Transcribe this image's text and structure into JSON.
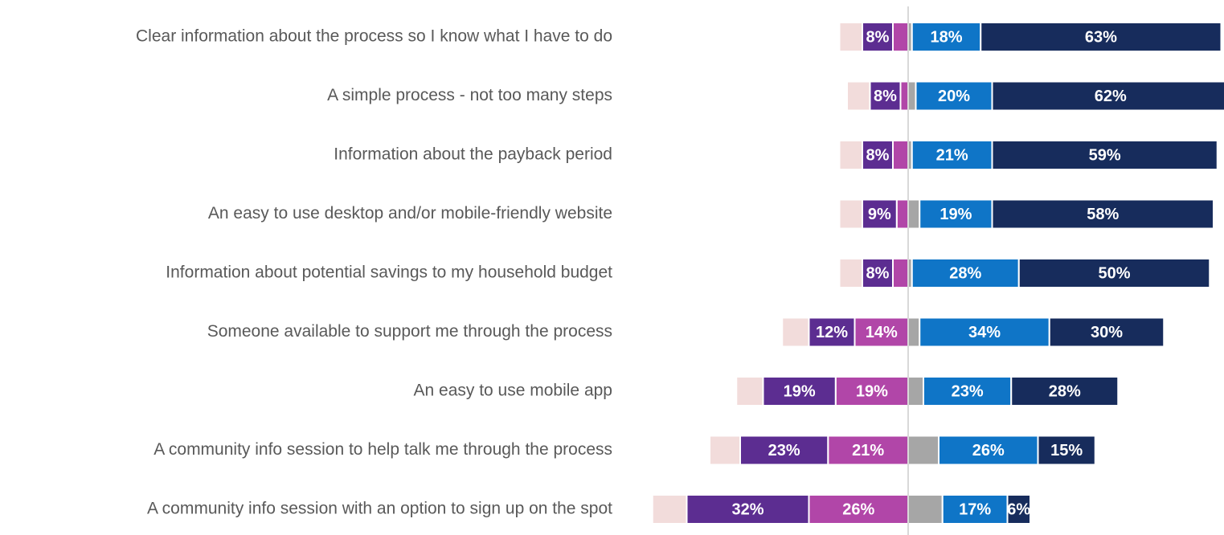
{
  "chart_data": {
    "type": "diverging_bar",
    "categories": [
      "Clear information about the process so I know what I have to do",
      "A simple process - not too many steps ",
      "Information about the payback period",
      "An easy to use desktop and/or mobile-friendly website",
      "Information about potential savings to my household budget",
      "Someone available to support me through the process",
      "An easy to use mobile app",
      "A community info session to help talk me through the process",
      "A community info session with an option to sign up on the spot"
    ],
    "series": [
      {
        "color": "#f2dcdb",
        "side": "left",
        "values": [
          6,
          6,
          6,
          6,
          6,
          7,
          7,
          8,
          9
        ],
        "value_labels": [
          null,
          null,
          null,
          null,
          null,
          null,
          null,
          null,
          null
        ]
      },
      {
        "color": "#5c2d91",
        "side": "left",
        "values": [
          8,
          8,
          8,
          9,
          8,
          12,
          19,
          23,
          32
        ],
        "value_labels": [
          "8%",
          "8%",
          "8%",
          "9%",
          "8%",
          "12%",
          "19%",
          "23%",
          "32%"
        ]
      },
      {
        "color": "#b146a8",
        "side": "left",
        "values": [
          4,
          2,
          4,
          3,
          4,
          14,
          19,
          21,
          26
        ],
        "value_labels": [
          null,
          null,
          null,
          null,
          null,
          "14%",
          "19%",
          "21%",
          "26%"
        ]
      },
      {
        "color": "#a6a6a6",
        "side": "right",
        "values": [
          1,
          2,
          1,
          3,
          1,
          3,
          4,
          8,
          9
        ],
        "value_labels": [
          null,
          null,
          null,
          null,
          null,
          null,
          null,
          null,
          null
        ]
      },
      {
        "color": "#0f75c7",
        "side": "right",
        "values": [
          18,
          20,
          21,
          19,
          28,
          34,
          23,
          26,
          17
        ],
        "value_labels": [
          "18%",
          "20%",
          "21%",
          "19%",
          "28%",
          "34%",
          "23%",
          "26%",
          "17%"
        ]
      },
      {
        "color": "#172c5c",
        "side": "right",
        "values": [
          63,
          62,
          59,
          58,
          50,
          30,
          28,
          15,
          6
        ],
        "value_labels": [
          "63%",
          "62%",
          "59%",
          "58%",
          "50%",
          "30%",
          "28%",
          "15%",
          "6%"
        ]
      }
    ]
  }
}
